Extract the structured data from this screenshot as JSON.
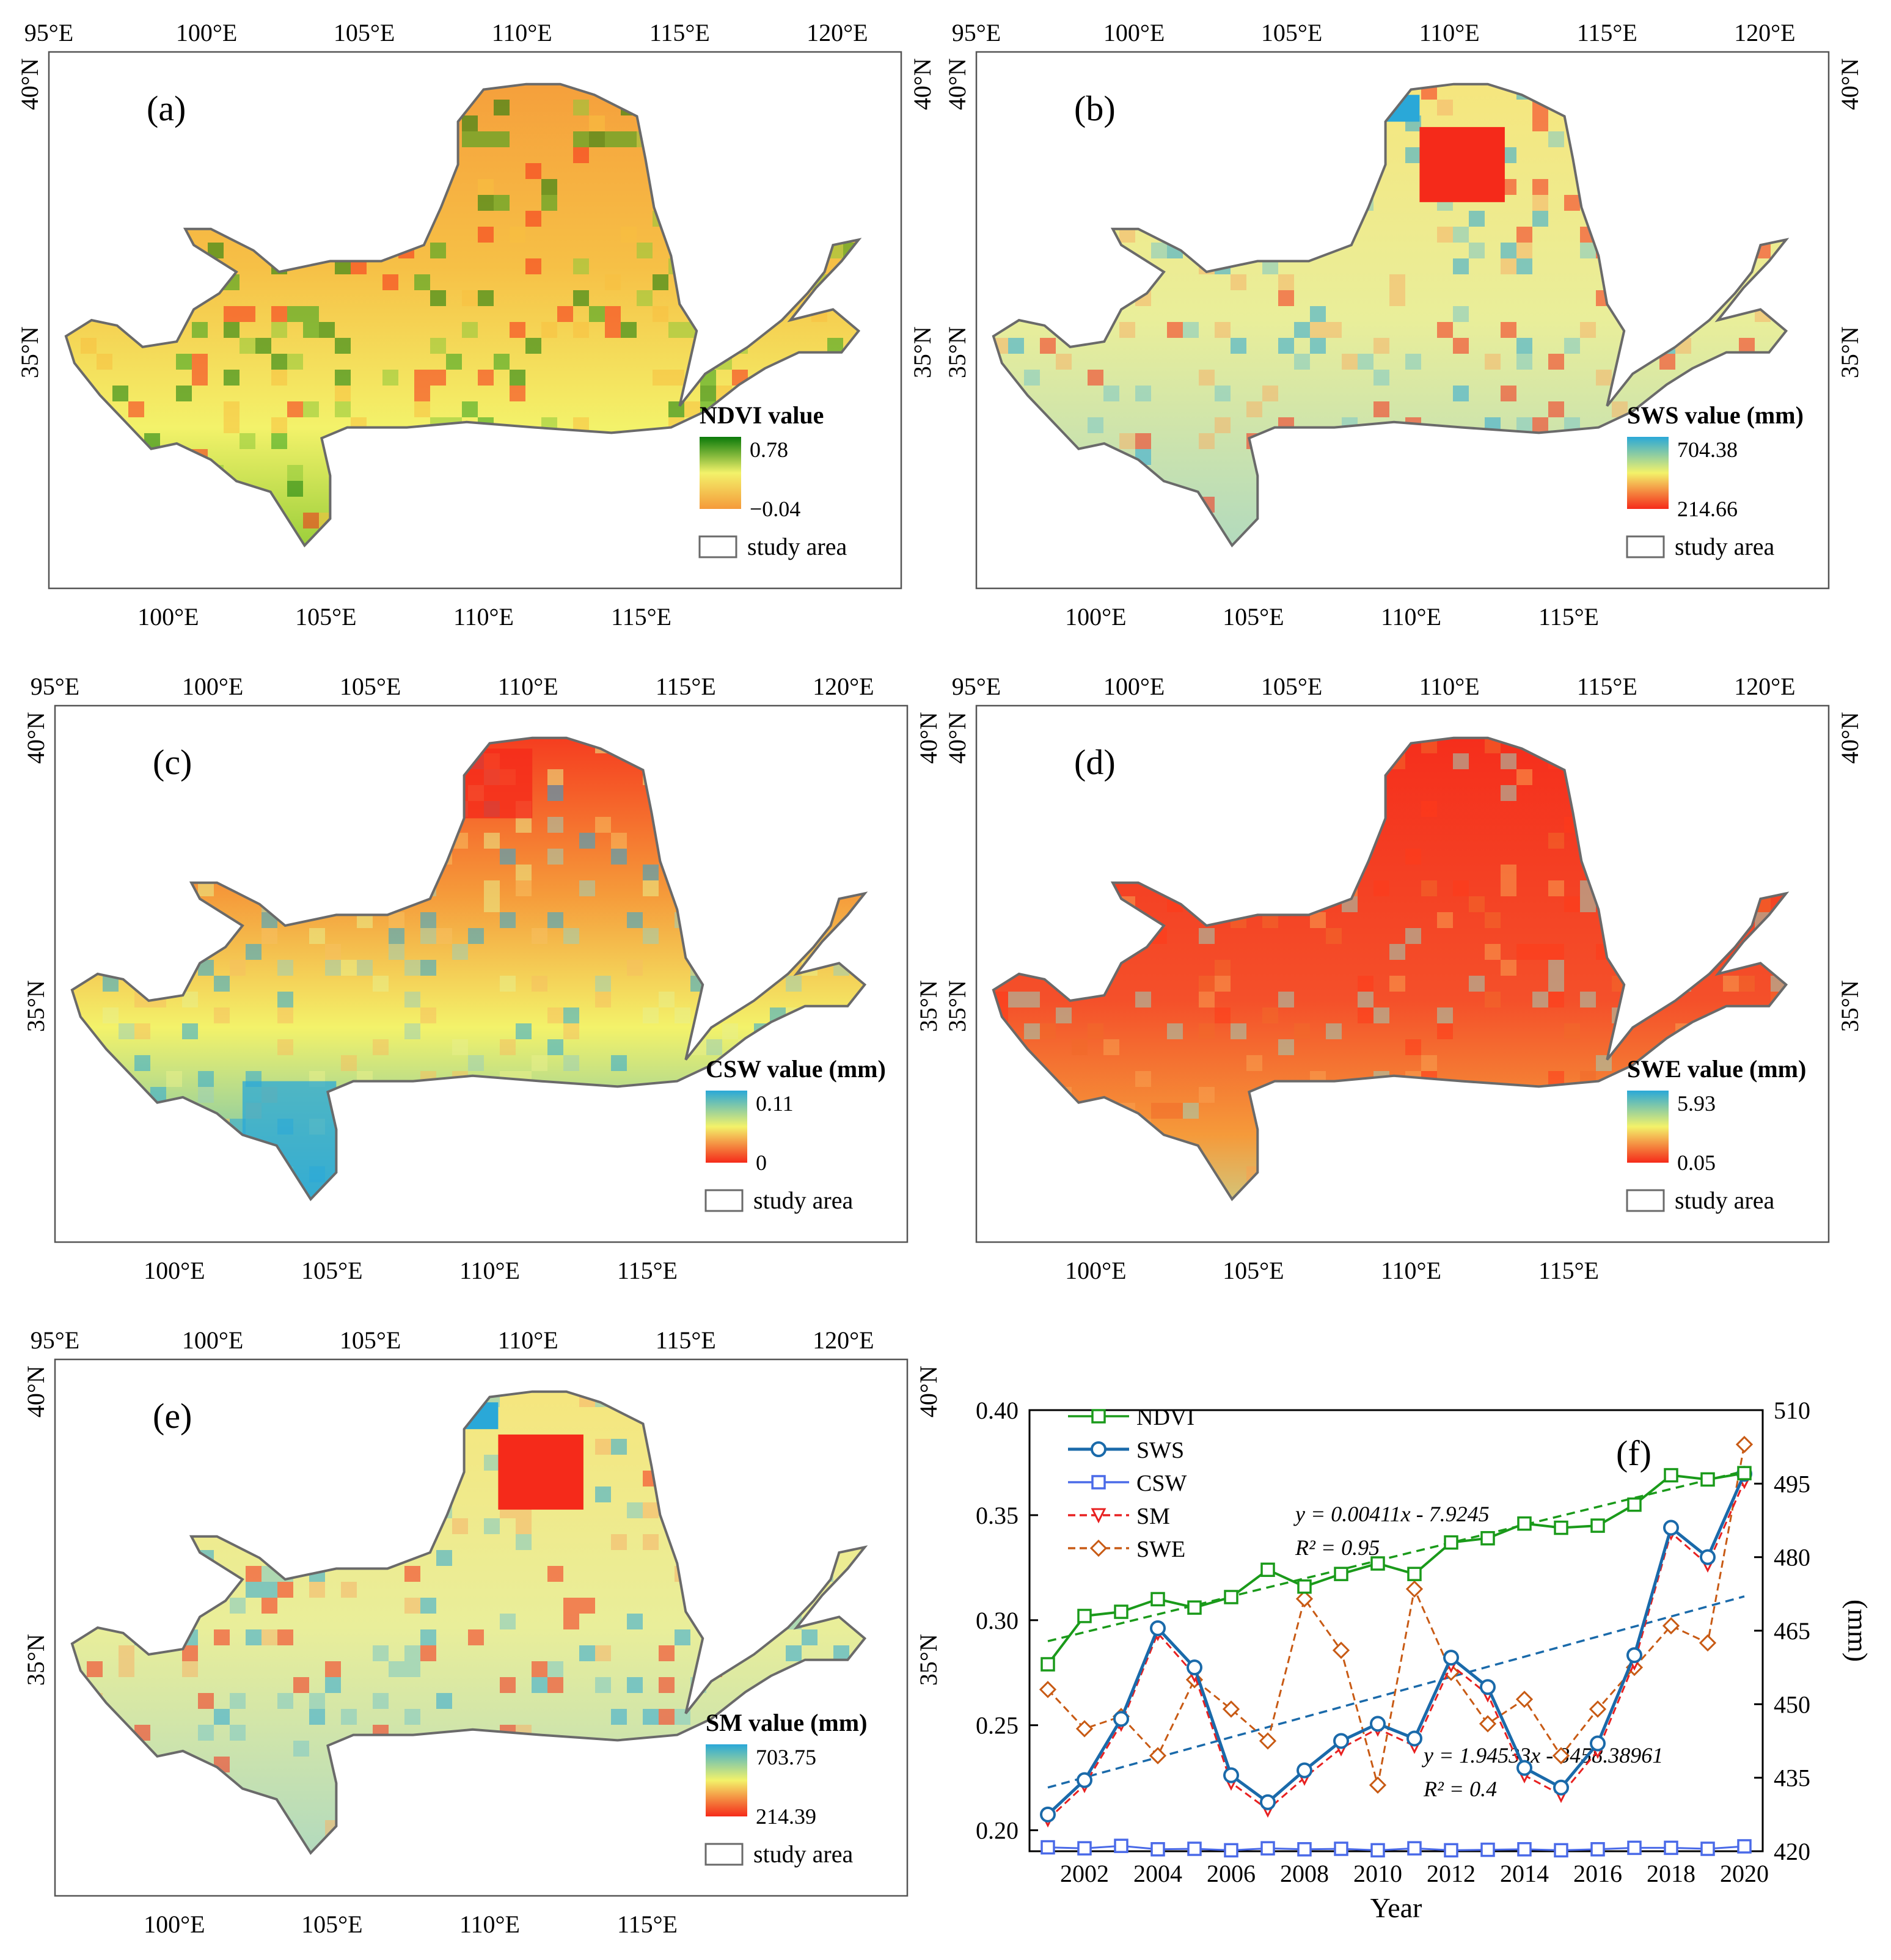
{
  "lon_ticks_top": [
    "95°E",
    "100°E",
    "105°E",
    "110°E",
    "115°E",
    "120°E"
  ],
  "lon_ticks_bottom": [
    "100°E",
    "105°E",
    "110°E",
    "115°E"
  ],
  "lat_ticks": [
    "40°N",
    "35°N"
  ],
  "legend_study_area": "study area",
  "colors": {
    "green_dark": "#0a7a0a",
    "yellow": "#f3f26a",
    "orange": "#f59a3a",
    "red": "#f52a1a",
    "blue": "#2aa8d8",
    "boundary": "#6a6a6a"
  },
  "panels": [
    {
      "id": "a",
      "label": "(a)",
      "legend_title": "NDVI value",
      "max": "0.78",
      "min": "−0.04",
      "ramp": "ndvi"
    },
    {
      "id": "b",
      "label": "(b)",
      "legend_title": "SWS value (mm)",
      "max": "704.38",
      "min": "214.66",
      "ramp": "blue"
    },
    {
      "id": "c",
      "label": "(c)",
      "legend_title": "CSW value (mm)",
      "max": "0.11",
      "min": "0",
      "ramp": "blue"
    },
    {
      "id": "d",
      "label": "(d)",
      "legend_title": "SWE value (mm)",
      "max": "5.93",
      "min": "0.05",
      "ramp": "blue"
    },
    {
      "id": "e",
      "label": "(e)",
      "legend_title": "SM value (mm)",
      "max": "703.75",
      "min": "214.39",
      "ramp": "blue"
    }
  ],
  "chart_data": {
    "type": "line",
    "label": "(f)",
    "xlabel": "Year",
    "ylabel_right": "(mm)",
    "x": [
      2001,
      2002,
      2003,
      2004,
      2005,
      2006,
      2007,
      2008,
      2009,
      2010,
      2011,
      2012,
      2013,
      2014,
      2015,
      2016,
      2017,
      2018,
      2019,
      2020
    ],
    "xticks": [
      2002,
      2004,
      2006,
      2008,
      2010,
      2012,
      2014,
      2016,
      2018,
      2020
    ],
    "ylim_left": [
      0.19,
      0.4
    ],
    "yticks_left": [
      "0.20",
      "0.25",
      "0.30",
      "0.35",
      "0.40"
    ],
    "ylim_right": [
      420,
      510
    ],
    "yticks_right": [
      "420",
      "435",
      "450",
      "465",
      "480",
      "495",
      "510"
    ],
    "series": [
      {
        "name": "NDVI",
        "axis": "left",
        "color": "#1a9a1a",
        "marker": "square",
        "values": [
          0.279,
          0.302,
          0.304,
          0.31,
          0.306,
          0.311,
          0.324,
          0.316,
          0.322,
          0.327,
          0.322,
          0.337,
          0.339,
          0.346,
          0.344,
          0.345,
          0.355,
          0.369,
          0.367,
          0.37
        ]
      },
      {
        "name": "SWS",
        "axis": "right",
        "color": "#1a6aaa",
        "marker": "circle",
        "values": [
          427.5,
          434.5,
          447.0,
          465.5,
          457.5,
          435.5,
          430.0,
          436.5,
          442.5,
          446.0,
          443.0,
          459.5,
          453.5,
          437.0,
          433.0,
          442.0,
          460.0,
          486.0,
          480.0,
          497.0
        ]
      },
      {
        "name": "CSW",
        "axis": "right",
        "color": "#4a6ae8",
        "marker": "square",
        "values": [
          420.8,
          420.6,
          421.1,
          420.4,
          420.5,
          420.2,
          420.6,
          420.4,
          420.5,
          420.2,
          420.6,
          420.2,
          420.3,
          420.4,
          420.2,
          420.4,
          420.7,
          420.7,
          420.5,
          421.0
        ]
      },
      {
        "name": "SM",
        "axis": "right",
        "color": "#e82020",
        "marker": "triangle-down",
        "values": [
          426.5,
          433.5,
          446.0,
          464.5,
          456.0,
          434.0,
          428.5,
          435.0,
          441.0,
          445.0,
          441.5,
          458.0,
          452.0,
          435.5,
          431.5,
          440.5,
          458.5,
          485.0,
          478.5,
          495.5
        ]
      },
      {
        "name": "SWE",
        "axis": "right",
        "color": "#c85a14",
        "marker": "diamond",
        "values": [
          453.0,
          445.0,
          447.5,
          439.5,
          455.0,
          449.0,
          442.5,
          471.5,
          461.0,
          433.5,
          473.5,
          456.5,
          446.0,
          451.0,
          439.5,
          449.0,
          457.5,
          466.0,
          462.5,
          503.0
        ]
      }
    ],
    "trend_ndvi": {
      "equation": "y = 0.00411x - 7.9245",
      "r2": "R² = 0.95",
      "color": "#1a9a1a",
      "start": 0.29,
      "end": 0.371
    },
    "trend_sws": {
      "equation": "y = 1.94533x - 3458.38961",
      "r2": "R² = 0.4",
      "color": "#1a6aaa",
      "start": 433.0,
      "end": 472.0
    }
  }
}
